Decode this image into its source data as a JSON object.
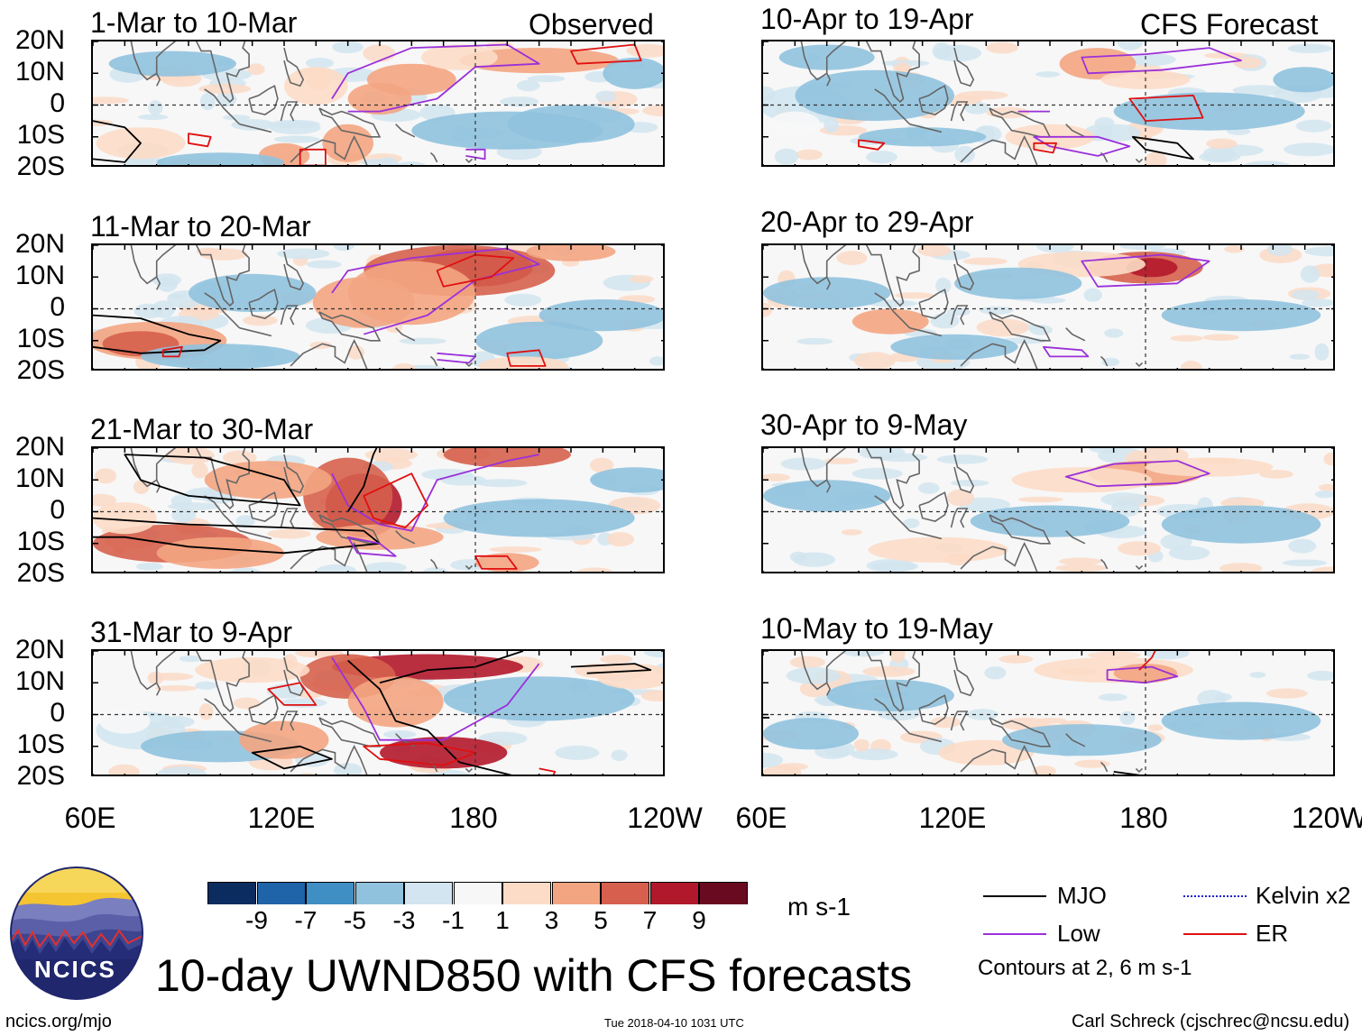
{
  "observed_label": "Observed",
  "forecast_label": "CFS Forecast",
  "panels": [
    {
      "id": "p1",
      "title": "1-Mar to 10-Mar",
      "anomaly": "weak"
    },
    {
      "id": "p2",
      "title": "11-Mar to 20-Mar",
      "anomaly": "moderate"
    },
    {
      "id": "p3",
      "title": "21-Mar to 30-Mar",
      "anomaly": "strong"
    },
    {
      "id": "p4",
      "title": "31-Mar to 9-Apr",
      "anomaly": "strong"
    },
    {
      "id": "p5",
      "title": "10-Apr to 19-Apr",
      "anomaly": "weak"
    },
    {
      "id": "p6",
      "title": "20-Apr to 29-Apr",
      "anomaly": "moderate"
    },
    {
      "id": "p7",
      "title": "30-Apr to 9-May",
      "anomaly": "weak"
    },
    {
      "id": "p8",
      "title": "10-May to 19-May",
      "anomaly": "weak"
    }
  ],
  "y_ticks": [
    "20N",
    "10N",
    "0",
    "10S",
    "20S"
  ],
  "x_ticks": [
    "60E",
    "120E",
    "180",
    "120W"
  ],
  "colorbar": {
    "colors": [
      "#0b2c5f",
      "#1f63a8",
      "#3f8ec4",
      "#90c2de",
      "#d2e5f0",
      "#f7f7f7",
      "#fcdbc7",
      "#f3a582",
      "#d6604d",
      "#b2182b",
      "#6a0a20"
    ],
    "labels": [
      "-9",
      "-7",
      "-5",
      "-3",
      "-1",
      "1",
      "3",
      "5",
      "7",
      "9"
    ],
    "units": "m s-1"
  },
  "legend": [
    {
      "name": "MJO",
      "color": "#000000"
    },
    {
      "name": "Kelvin x2",
      "color": "#1f1fd0"
    },
    {
      "name": "Low",
      "color": "#9b30d9"
    },
    {
      "name": "ER",
      "color": "#e01010"
    }
  ],
  "contours_note": "Contours at 2, 6 m s-1",
  "main_title": "10-day UWND850 with CFS forecasts",
  "logo_text": "NCICS",
  "footer": {
    "left": "ncics.org/mjo",
    "center": "Tue 2018-04-10 1031 UTC",
    "right": "Carl Schreck (cjschrec@ncsu.edu)"
  }
}
